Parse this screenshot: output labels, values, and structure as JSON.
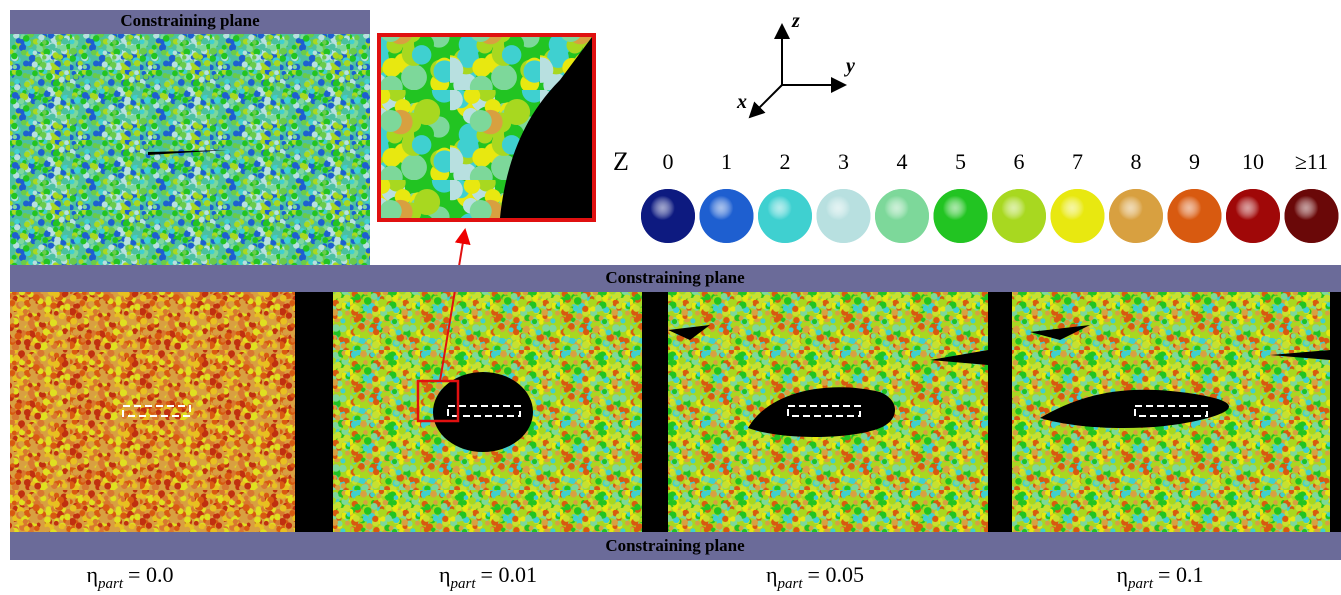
{
  "top_panel": {
    "header": "Constraining plane"
  },
  "axes": {
    "x": "x",
    "y": "y",
    "z": "z"
  },
  "legend": {
    "title": "Z",
    "items": [
      {
        "label": "0",
        "color": "#0d1a80"
      },
      {
        "label": "1",
        "color": "#1e5fd0"
      },
      {
        "label": "2",
        "color": "#3fd0d0"
      },
      {
        "label": "3",
        "color": "#b8e0e0"
      },
      {
        "label": "4",
        "color": "#7dd89a"
      },
      {
        "label": "5",
        "color": "#22c422"
      },
      {
        "label": "6",
        "color": "#a8d820"
      },
      {
        "label": "7",
        "color": "#e8e810"
      },
      {
        "label": "8",
        "color": "#d8a040"
      },
      {
        "label": "9",
        "color": "#d85a10"
      },
      {
        "label": "10",
        "color": "#a00808"
      },
      {
        "label": "≥11",
        "color": "#6a0808"
      }
    ]
  },
  "bottom_panels": {
    "header": "Constraining plane",
    "footer": "Constraining plane",
    "panels": [
      {
        "symbol": "η",
        "subscript": "part",
        "value": "= 0.0"
      },
      {
        "symbol": "η",
        "subscript": "part",
        "value": "= 0.01"
      },
      {
        "symbol": "η",
        "subscript": "part",
        "value": "= 0.05"
      },
      {
        "symbol": "η",
        "subscript": "part",
        "value": "= 0.1"
      }
    ]
  }
}
